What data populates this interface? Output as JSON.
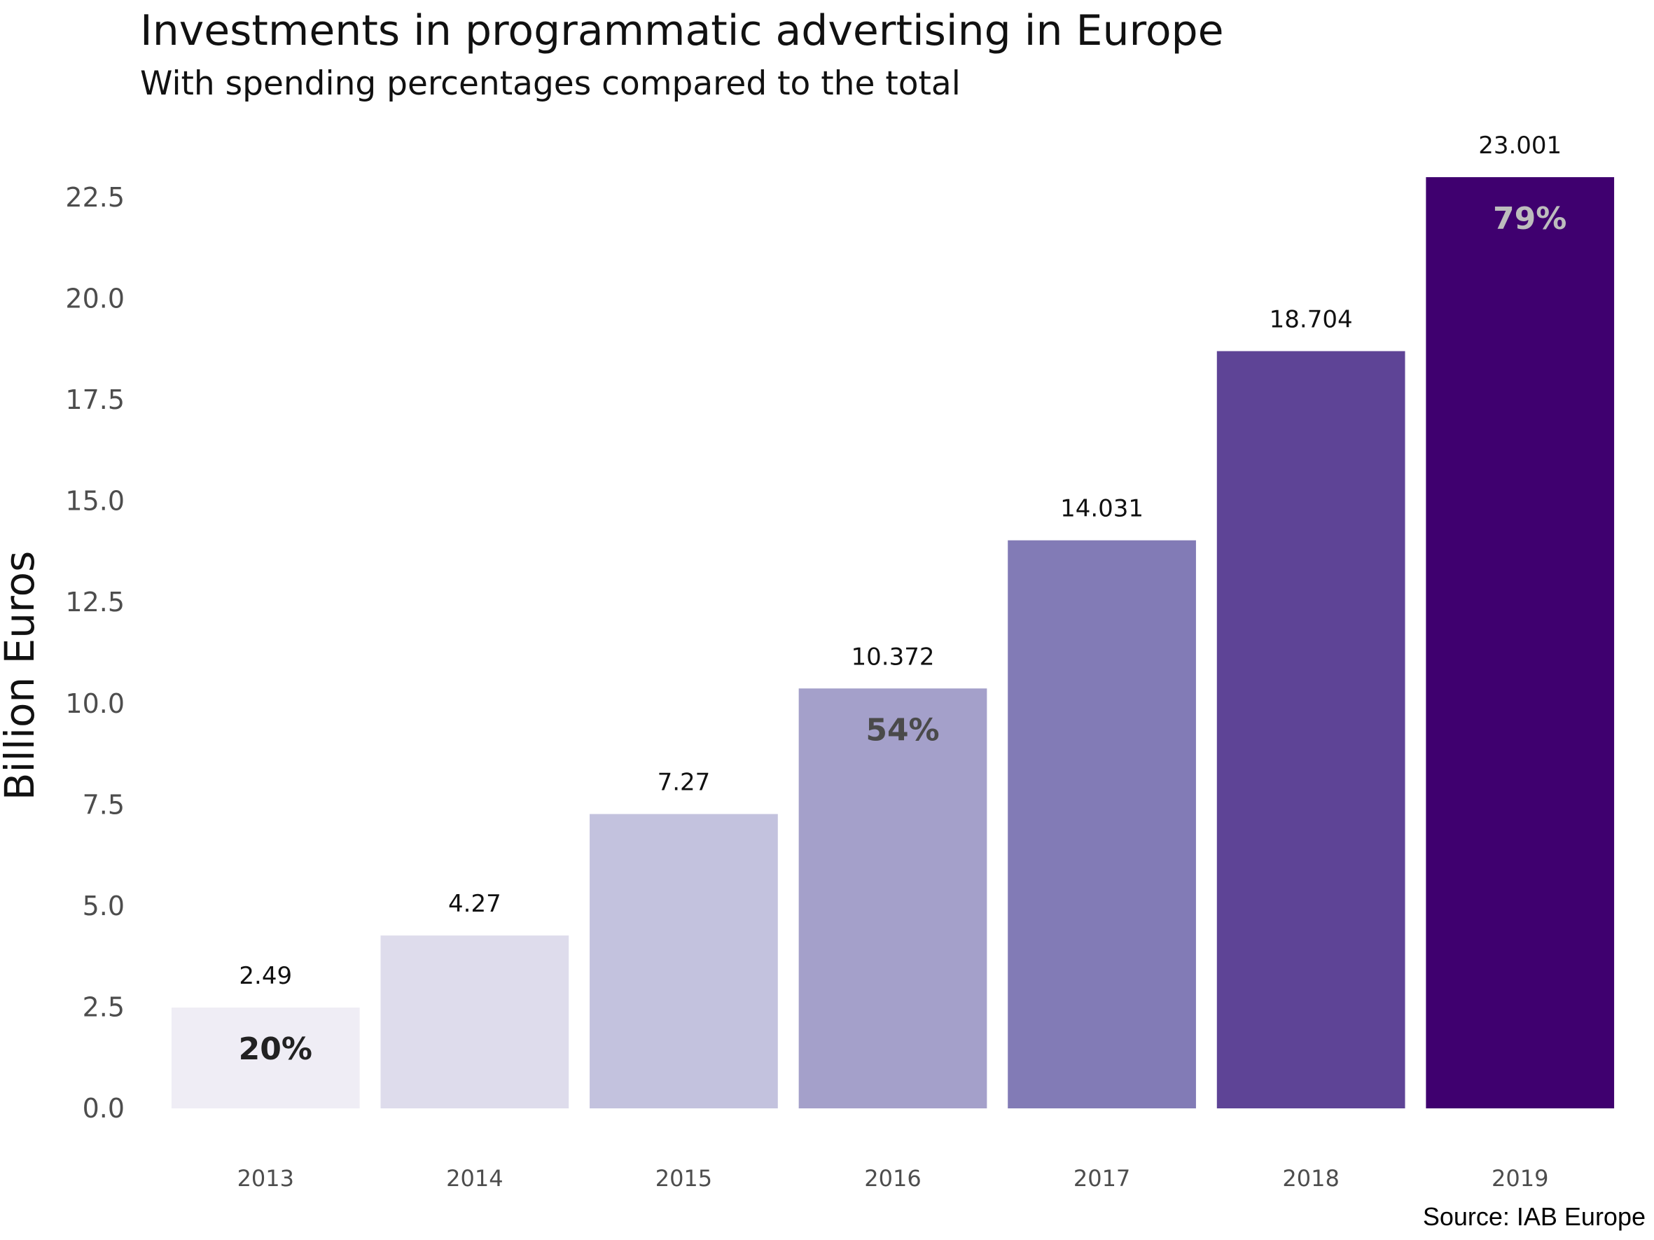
{
  "chart_data": {
    "type": "bar",
    "title": "Investments in programmatic advertising in Europe",
    "subtitle": "With spending percentages compared to the total",
    "xlabel": "",
    "ylabel": "Billion Euros",
    "categories": [
      "2013",
      "2014",
      "2015",
      "2016",
      "2017",
      "2018",
      "2019"
    ],
    "values": [
      2.49,
      4.27,
      7.27,
      10.372,
      14.031,
      18.704,
      23.001
    ],
    "value_labels": [
      "2.49",
      "4.27",
      "7.27",
      "10.372",
      "14.031",
      "18.704",
      "23.001"
    ],
    "percent_labels": [
      {
        "category": "2013",
        "text": "20%",
        "color": "#222222"
      },
      {
        "category": "2016",
        "text": "54%",
        "color": "#4a4a4a"
      },
      {
        "category": "2019",
        "text": "79%",
        "color": "#bdbdbd"
      }
    ],
    "bar_colors": [
      "#efedf5",
      "#dedcec",
      "#c3c2de",
      "#a4a0ca",
      "#827bb6",
      "#5e4496",
      "#3f006f"
    ],
    "ylim": [
      0,
      23.5
    ],
    "yticks": [
      0.0,
      2.5,
      5.0,
      7.5,
      10.0,
      12.5,
      15.0,
      17.5,
      20.0,
      22.5
    ],
    "ytick_labels": [
      "0.0",
      "2.5",
      "5.0",
      "7.5",
      "10.0",
      "12.5",
      "15.0",
      "17.5",
      "20.0",
      "22.5"
    ],
    "grid": false,
    "legend": "none",
    "source": "Source: IAB Europe"
  }
}
